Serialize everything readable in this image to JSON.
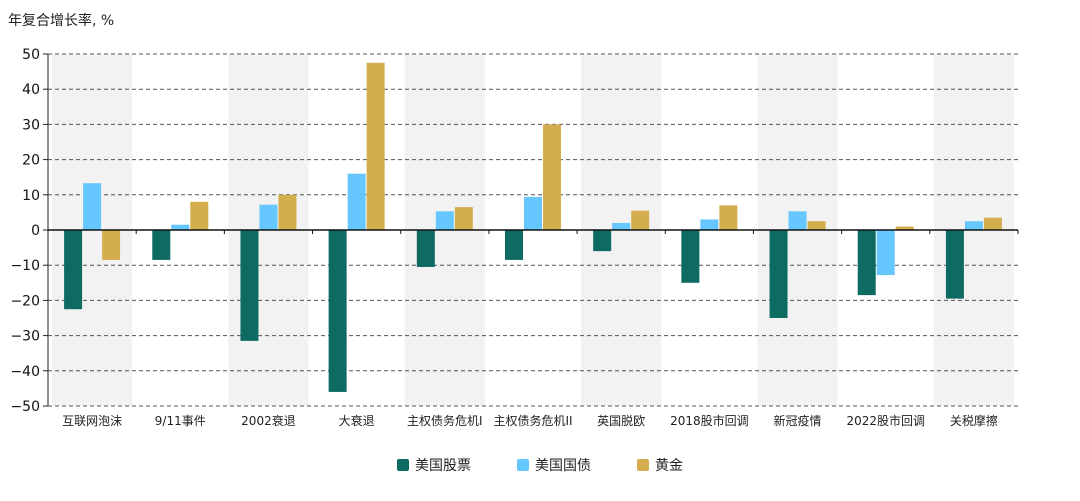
{
  "chart_data": {
    "type": "bar",
    "title": "",
    "ylabel": "年复合增长率, %",
    "xlabel": "",
    "ylim": [
      -50,
      50
    ],
    "yticks": [
      50,
      40,
      30,
      20,
      10,
      0,
      -10,
      -20,
      -30,
      -40,
      -50
    ],
    "grid": "horizontal dashed",
    "legend_position": "bottom-center",
    "shaded_bands": "alternating categories (1st, 3rd, 5th, ...)",
    "categories": [
      "互联网泡沫",
      "9/11事件",
      "2002衰退",
      "大衰退",
      "主权债务危机I",
      "主权债务危机II",
      "英国脱欧",
      "2018股市回调",
      "新冠疫情",
      "2022股市回调",
      "关税摩擦"
    ],
    "series": [
      {
        "name": "美国股票",
        "color": "#0d6b61",
        "values": [
          -22.5,
          -8.5,
          -31.5,
          -46.0,
          -10.5,
          -8.5,
          -6.0,
          -15.0,
          -25.0,
          -18.5,
          -19.5
        ]
      },
      {
        "name": "美国国债",
        "color": "#66c7ff",
        "values": [
          13.3,
          1.5,
          7.2,
          16.0,
          5.3,
          9.4,
          2.0,
          3.0,
          5.3,
          -12.8,
          2.5
        ]
      },
      {
        "name": "黄金",
        "color": "#d4ad4f",
        "values": [
          -8.5,
          8.0,
          10.0,
          47.5,
          6.5,
          30.0,
          5.5,
          7.0,
          2.5,
          1.0,
          3.5
        ]
      }
    ]
  }
}
